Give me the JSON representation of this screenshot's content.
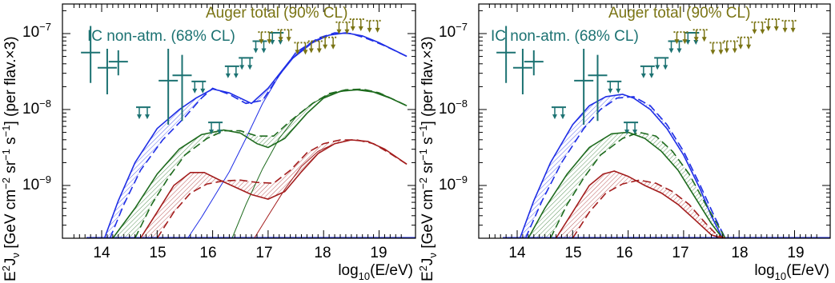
{
  "colors": {
    "blue": "#1f2ee6",
    "green": "#1e6b1e",
    "red": "#a31d1d",
    "icecube": "#1c7272",
    "auger": "#7a7414",
    "axis": "#000000"
  },
  "chart_data": [
    {
      "type": "line",
      "panel": "left",
      "xlabel": "log10(E/eV)",
      "ylabel": "E2 Jν [GeV cm-2 sr-1 s-1] (per flav.×3)",
      "xlim": [
        13.4,
        19.6
      ],
      "ylim_log10": [
        -9.7,
        -6.8
      ],
      "log_y": true,
      "x_ticks": [
        "14",
        "15",
        "16",
        "17",
        "18",
        "19"
      ],
      "y_ticks": [
        "10-9",
        "10-8",
        "10-7"
      ],
      "annotations": [
        "Auger total (90% CL)",
        "IC non-atm. (68% CL)"
      ],
      "series": [
        {
          "color_key": "blue",
          "style": "solid",
          "x": [
            14.05,
            14.3,
            14.6,
            15.0,
            15.4,
            15.7,
            16.0,
            16.3,
            16.7,
            17.0,
            17.4,
            17.8,
            18.1,
            18.4,
            18.7,
            19.0,
            19.5
          ],
          "log10_y": [
            -9.7,
            -9.2,
            -8.7,
            -8.25,
            -8.0,
            -7.85,
            -7.73,
            -7.78,
            -7.92,
            -7.72,
            -7.35,
            -7.12,
            -7.02,
            -6.99,
            -7.03,
            -7.12,
            -7.3
          ]
        },
        {
          "color_key": "blue",
          "style": "dashed",
          "x": [
            14.15,
            14.4,
            14.7,
            15.1,
            15.5,
            15.8,
            16.0,
            16.3,
            16.6,
            16.9,
            17.2,
            17.5,
            17.9,
            18.2,
            18.5,
            18.8,
            19.1,
            19.5
          ],
          "log10_y": [
            -9.7,
            -9.25,
            -8.8,
            -8.4,
            -8.1,
            -7.85,
            -7.72,
            -7.8,
            -7.92,
            -7.88,
            -7.55,
            -7.25,
            -7.06,
            -6.99,
            -7.0,
            -7.07,
            -7.16,
            -7.3
          ]
        },
        {
          "color_key": "blue",
          "style": "thin",
          "x": [
            15.55,
            15.8,
            16.0,
            16.3,
            16.6,
            16.9,
            17.2,
            17.5,
            17.8,
            18.1,
            18.4,
            18.7,
            19.0,
            19.5
          ],
          "log10_y": [
            -9.7,
            -9.42,
            -9.18,
            -8.82,
            -8.38,
            -7.92,
            -7.55,
            -7.28,
            -7.1,
            -7.02,
            -6.99,
            -7.03,
            -7.12,
            -7.3
          ]
        },
        {
          "color_key": "green",
          "style": "solid",
          "x": [
            14.2,
            14.6,
            15.0,
            15.4,
            15.8,
            16.2,
            16.5,
            16.8,
            17.0,
            17.3,
            17.7,
            18.0,
            18.3,
            18.6,
            18.9,
            19.2,
            19.5
          ],
          "log10_y": [
            -9.7,
            -9.3,
            -8.85,
            -8.52,
            -8.33,
            -8.27,
            -8.31,
            -8.45,
            -8.5,
            -8.38,
            -8.05,
            -7.85,
            -7.76,
            -7.74,
            -7.77,
            -7.85,
            -7.95
          ]
        },
        {
          "color_key": "green",
          "style": "dashed",
          "x": [
            14.6,
            14.9,
            15.2,
            15.5,
            15.9,
            16.2,
            16.5,
            16.8,
            17.1,
            17.4,
            17.8,
            18.1,
            18.4,
            18.7,
            19.0,
            19.3,
            19.5
          ],
          "log10_y": [
            -9.7,
            -9.25,
            -8.9,
            -8.6,
            -8.38,
            -8.28,
            -8.28,
            -8.35,
            -8.35,
            -8.15,
            -7.92,
            -7.79,
            -7.74,
            -7.73,
            -7.78,
            -7.88,
            -7.95
          ]
        },
        {
          "color_key": "green",
          "style": "thin",
          "x": [
            16.35,
            16.6,
            16.9,
            17.2,
            17.5,
            17.8,
            18.1,
            18.4,
            18.7,
            19.0,
            19.3,
            19.5
          ],
          "log10_y": [
            -9.7,
            -9.25,
            -8.78,
            -8.38,
            -8.1,
            -7.92,
            -7.8,
            -7.75,
            -7.74,
            -7.78,
            -7.88,
            -7.95
          ]
        },
        {
          "color_key": "red",
          "style": "solid",
          "x": [
            14.7,
            15.0,
            15.3,
            15.6,
            15.85,
            16.1,
            16.4,
            16.7,
            17.0,
            17.3,
            17.6,
            17.9,
            18.2,
            18.5,
            18.8,
            19.1,
            19.5
          ],
          "log10_y": [
            -9.7,
            -9.35,
            -9.0,
            -8.83,
            -8.83,
            -8.92,
            -9.02,
            -9.12,
            -9.18,
            -9.08,
            -8.82,
            -8.58,
            -8.45,
            -8.4,
            -8.42,
            -8.52,
            -8.72
          ]
        },
        {
          "color_key": "red",
          "style": "dashed",
          "x": [
            15.0,
            15.3,
            15.6,
            15.9,
            16.2,
            16.5,
            16.8,
            17.1,
            17.4,
            17.7,
            18.0,
            18.3,
            18.6,
            18.9,
            19.2,
            19.5
          ],
          "log10_y": [
            -9.7,
            -9.35,
            -9.1,
            -8.98,
            -8.94,
            -8.93,
            -8.96,
            -8.97,
            -8.8,
            -8.57,
            -8.45,
            -8.4,
            -8.4,
            -8.45,
            -8.58,
            -8.72
          ]
        },
        {
          "color_key": "red",
          "style": "thin",
          "x": [
            16.75,
            17.0,
            17.3,
            17.6,
            17.9,
            18.2,
            18.5,
            18.8,
            19.1,
            19.5
          ],
          "log10_y": [
            -9.7,
            -9.4,
            -9.05,
            -8.75,
            -8.55,
            -8.45,
            -8.4,
            -8.42,
            -8.52,
            -8.72
          ]
        }
      ]
    },
    {
      "type": "line",
      "panel": "right",
      "xlabel": "log10(E/eV)",
      "ylabel": "E2 Jν [GeV cm-2 sr-1 s-1] (per flav.×3)",
      "xlim": [
        13.4,
        19.6
      ],
      "ylim_log10": [
        -9.7,
        -6.8
      ],
      "log_y": true,
      "x_ticks": [
        "14",
        "15",
        "16",
        "17",
        "18",
        "19"
      ],
      "y_ticks": [
        "10-9",
        "10-8",
        "10-7"
      ],
      "annotations": [
        "Auger total (90% CL)",
        "IC non-atm. (68% CL)"
      ],
      "series": [
        {
          "color_key": "blue",
          "style": "solid",
          "x": [
            14.05,
            14.3,
            14.6,
            15.0,
            15.3,
            15.6,
            15.9,
            16.1,
            16.4,
            16.7,
            17.0,
            17.3,
            17.5,
            17.7
          ],
          "log10_y": [
            -9.7,
            -9.2,
            -8.7,
            -8.2,
            -7.95,
            -7.83,
            -7.8,
            -7.85,
            -8.0,
            -8.25,
            -8.6,
            -9.05,
            -9.4,
            -9.7
          ]
        },
        {
          "color_key": "blue",
          "style": "dashed",
          "x": [
            14.15,
            14.45,
            14.8,
            15.2,
            15.5,
            15.8,
            16.1,
            16.4,
            16.7,
            17.0,
            17.3,
            17.55,
            17.75
          ],
          "log10_y": [
            -9.7,
            -9.2,
            -8.7,
            -8.25,
            -8.0,
            -7.85,
            -7.83,
            -7.95,
            -8.2,
            -8.55,
            -9.0,
            -9.4,
            -9.7
          ]
        },
        {
          "color_key": "green",
          "style": "solid",
          "x": [
            14.2,
            14.5,
            14.9,
            15.3,
            15.7,
            16.0,
            16.3,
            16.6,
            16.9,
            17.2,
            17.5,
            17.7
          ],
          "log10_y": [
            -9.7,
            -9.3,
            -8.85,
            -8.5,
            -8.32,
            -8.3,
            -8.38,
            -8.55,
            -8.8,
            -9.15,
            -9.5,
            -9.7
          ]
        },
        {
          "color_key": "green",
          "style": "dashed",
          "x": [
            14.6,
            14.9,
            15.2,
            15.5,
            15.9,
            16.2,
            16.5,
            16.8,
            17.1,
            17.4,
            17.6,
            17.75
          ],
          "log10_y": [
            -9.7,
            -9.25,
            -8.9,
            -8.6,
            -8.38,
            -8.3,
            -8.35,
            -8.55,
            -8.85,
            -9.25,
            -9.5,
            -9.7
          ]
        },
        {
          "color_key": "red",
          "style": "solid",
          "x": [
            14.7,
            15.0,
            15.3,
            15.55,
            15.75,
            16.0,
            16.3,
            16.6,
            16.9,
            17.2,
            17.5,
            17.7
          ],
          "log10_y": [
            -9.7,
            -9.35,
            -9.0,
            -8.85,
            -8.81,
            -8.88,
            -9.0,
            -9.1,
            -9.25,
            -9.45,
            -9.65,
            -9.7
          ]
        },
        {
          "color_key": "red",
          "style": "dashed",
          "x": [
            15.0,
            15.3,
            15.6,
            15.9,
            16.2,
            16.5,
            16.8,
            17.1,
            17.4,
            17.6,
            17.75
          ],
          "log10_y": [
            -9.7,
            -9.35,
            -9.1,
            -8.98,
            -8.93,
            -8.97,
            -9.08,
            -9.25,
            -9.5,
            -9.65,
            -9.7
          ]
        }
      ]
    }
  ],
  "icecube_points": [
    {
      "x": 13.8,
      "log10_y": -7.25,
      "ylo": -7.65,
      "yhi": -6.9
    },
    {
      "x": 14.1,
      "log10_y": -7.45,
      "ylo": -7.8,
      "yhi": -7.2
    },
    {
      "x": 14.3,
      "log10_y": -7.37,
      "ylo": -7.55,
      "yhi": -7.22
    },
    {
      "x": 15.2,
      "log10_y": -7.62,
      "ylo": -8.2,
      "yhi": -7.2
    },
    {
      "x": 15.45,
      "log10_y": -7.55,
      "ylo": -8.15,
      "yhi": -7.28
    }
  ],
  "icecube_limits": [
    {
      "x": 14.75,
      "log10_y": -7.97
    },
    {
      "x": 15.75,
      "log10_y": -7.63
    },
    {
      "x": 16.05,
      "log10_y": -8.17
    },
    {
      "x": 16.35,
      "log10_y": -7.43
    },
    {
      "x": 16.6,
      "log10_y": -7.32
    },
    {
      "x": 16.85,
      "log10_y": -7.1
    },
    {
      "x": 17.15,
      "log10_y": -6.99
    }
  ],
  "auger_limits": [
    {
      "x": 16.95,
      "log10_y": -6.98
    },
    {
      "x": 17.3,
      "log10_y": -6.95
    },
    {
      "x": 17.6,
      "log10_y": -7.12
    },
    {
      "x": 17.85,
      "log10_y": -7.1
    },
    {
      "x": 18.1,
      "log10_y": -7.05
    },
    {
      "x": 18.35,
      "log10_y": -6.85
    },
    {
      "x": 18.6,
      "log10_y": -6.81
    },
    {
      "x": 18.9,
      "log10_y": -6.83
    }
  ]
}
